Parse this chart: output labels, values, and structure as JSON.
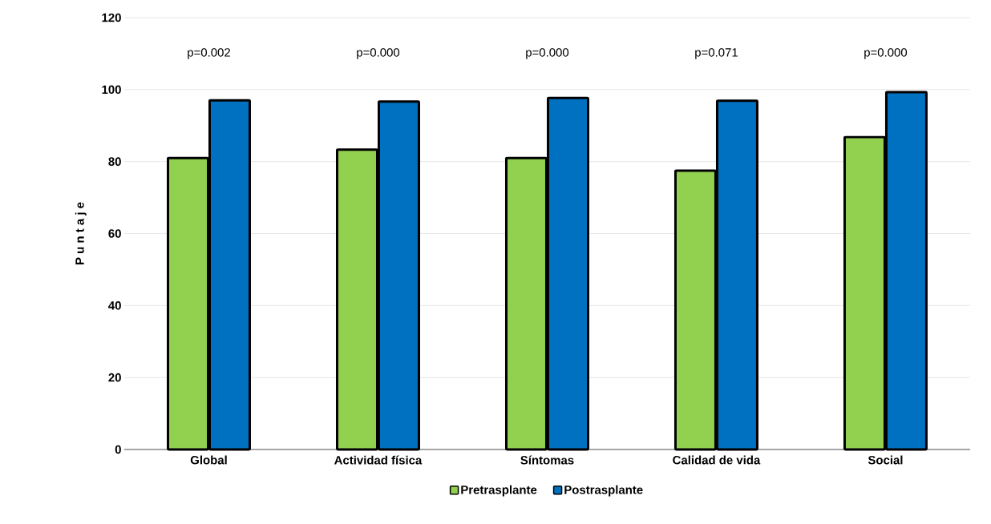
{
  "chart_data": {
    "type": "bar",
    "ylabel": "P u n t a j e",
    "categories": [
      "Global",
      "Actividad física",
      "Síntomas",
      "Calidad de vida",
      "Social"
    ],
    "series": [
      {
        "name": "Pretrasplante",
        "color": "#92d050",
        "values": [
          81,
          83.3,
          81,
          77.5,
          86.8
        ]
      },
      {
        "name": "Postrasplante",
        "color": "#0070c0",
        "values": [
          97,
          96.7,
          97.7,
          96.9,
          99.3
        ]
      }
    ],
    "ylim": [
      0,
      120
    ],
    "yticks": [
      0,
      20,
      40,
      60,
      80,
      100,
      120
    ],
    "grid": "y",
    "legend": "bottom",
    "annotations": [
      "p=0.002",
      "p=0.000",
      "p=0.000",
      "p=0.071",
      "p=0.000"
    ]
  }
}
